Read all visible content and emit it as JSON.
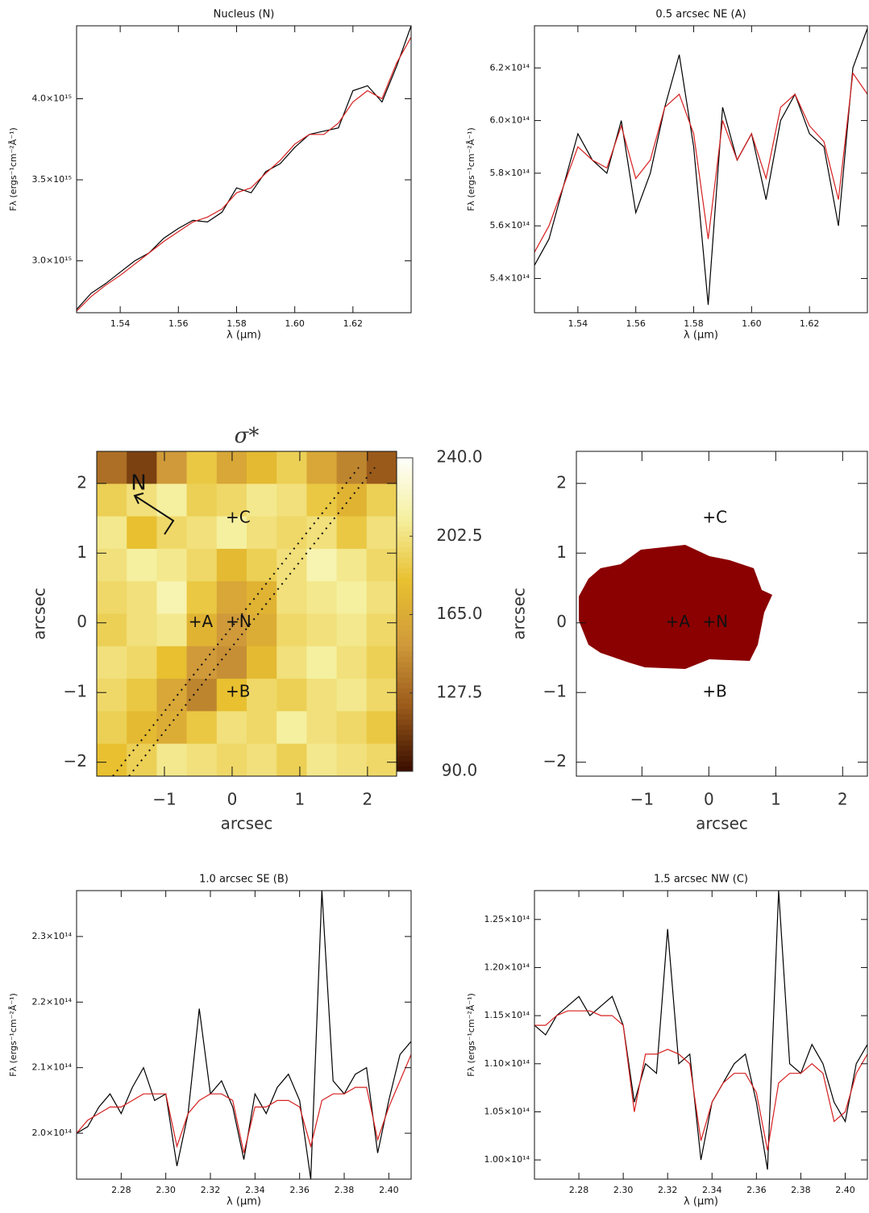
{
  "chart_data": [
    {
      "type": "line",
      "title": "Nucleus (N)",
      "xlabel": "λ (μm)",
      "ylabel": "Fλ (ergs⁻¹cm⁻²Å⁻¹)",
      "xlim": [
        1.525,
        1.64
      ],
      "ylim": [
        2680000000000000.0,
        4450000000000000.0
      ],
      "xticks": [
        1.54,
        1.56,
        1.58,
        {
          "value": 1.6,
          "label": "1.60"
        },
        1.62
      ],
      "yticks": [
        {
          "value": 3000000000000000.0,
          "label": "3.0×10¹⁵"
        },
        {
          "value": 3500000000000000.0,
          "label": "3.5×10¹⁵"
        },
        {
          "value": 4000000000000000.0,
          "label": "4.0×10¹⁵"
        }
      ],
      "x": [
        1.525,
        1.53,
        1.535,
        1.54,
        1.545,
        1.55,
        1.555,
        1.56,
        1.565,
        1.57,
        1.575,
        1.58,
        1.585,
        1.59,
        1.595,
        1.6,
        1.605,
        1.61,
        1.615,
        1.62,
        1.625,
        1.63,
        1.635,
        1.64
      ],
      "series": [
        {
          "color": "#000000",
          "values": [
            2700000000000000.0,
            2800000000000000.0,
            2860000000000000.0,
            2930000000000000.0,
            3000000000000000.0,
            3050000000000000.0,
            3140000000000000.0,
            3200000000000000.0,
            3250000000000000.0,
            3240000000000000.0,
            3300000000000000.0,
            3450000000000000.0,
            3420000000000000.0,
            3550000000000000.0,
            3600000000000000.0,
            3700000000000000.0,
            3780000000000000.0,
            3800000000000000.0,
            3820000000000000.0,
            4050000000000000.0,
            4080000000000000.0,
            3980000000000000.0,
            4200000000000000.0,
            4450000000000000.0
          ]
        },
        {
          "color": "#d62020",
          "values": [
            2690000000000000.0,
            2780000000000000.0,
            2850000000000000.0,
            2910000000000000.0,
            2980000000000000.0,
            3050000000000000.0,
            3120000000000000.0,
            3180000000000000.0,
            3240000000000000.0,
            3270000000000000.0,
            3320000000000000.0,
            3420000000000000.0,
            3450000000000000.0,
            3540000000000000.0,
            3620000000000000.0,
            3720000000000000.0,
            3780000000000000.0,
            3780000000000000.0,
            3850000000000000.0,
            3980000000000000.0,
            4050000000000000.0,
            4000000000000000.0,
            4220000000000000.0,
            4380000000000000.0
          ]
        }
      ]
    },
    {
      "type": "line",
      "title": "0.5 arcsec NE (A)",
      "xlabel": "λ (μm)",
      "ylabel": "Fλ (ergs⁻¹cm⁻²Å⁻¹)",
      "xlim": [
        1.525,
        1.64
      ],
      "ylim": [
        527000000000000.0,
        636000000000000.0
      ],
      "xticks": [
        1.54,
        1.56,
        1.58,
        {
          "value": 1.6,
          "label": "1.60"
        },
        1.62
      ],
      "yticks": [
        {
          "value": 540000000000000.0,
          "label": "5.4×10¹⁴"
        },
        {
          "value": 560000000000000.0,
          "label": "5.6×10¹⁴"
        },
        {
          "value": 580000000000000.0,
          "label": "5.8×10¹⁴"
        },
        {
          "value": 600000000000000.0,
          "label": "6.0×10¹⁴"
        },
        {
          "value": 620000000000000.0,
          "label": "6.2×10¹⁴"
        }
      ],
      "x": [
        1.525,
        1.53,
        1.535,
        1.54,
        1.545,
        1.55,
        1.555,
        1.56,
        1.565,
        1.57,
        1.575,
        1.58,
        1.585,
        1.59,
        1.595,
        1.6,
        1.605,
        1.61,
        1.615,
        1.62,
        1.625,
        1.63,
        1.635,
        1.64
      ],
      "series": [
        {
          "color": "#000000",
          "values": [
            545000000000000.0,
            555000000000000.0,
            575000000000000.0,
            595000000000000.0,
            585000000000000.0,
            580000000000000.0,
            600000000000000.0,
            565000000000000.0,
            580000000000000.0,
            605000000000000.0,
            625000000000000.0,
            590000000000000.0,
            530000000000000.0,
            605000000000000.0,
            585000000000000.0,
            595000000000000.0,
            570000000000000.0,
            600000000000000.0,
            610000000000000.0,
            595000000000000.0,
            590000000000000.0,
            560000000000000.0,
            620000000000000.0,
            635000000000000.0
          ]
        },
        {
          "color": "#d62020",
          "values": [
            550000000000000.0,
            560000000000000.0,
            575000000000000.0,
            590000000000000.0,
            585000000000000.0,
            582000000000000.0,
            598000000000000.0,
            578000000000000.0,
            585000000000000.0,
            605000000000000.0,
            610000000000000.0,
            595000000000000.0,
            555000000000000.0,
            600000000000000.0,
            585000000000000.0,
            595000000000000.0,
            578000000000000.0,
            605000000000000.0,
            610000000000000.0,
            598000000000000.0,
            592000000000000.0,
            570000000000000.0,
            618000000000000.0,
            610000000000000.0
          ]
        }
      ]
    },
    {
      "type": "heatmap",
      "title": "σ*",
      "xlabel": "arcsec",
      "ylabel": "arcsec",
      "north_label": "N",
      "xlim": [
        -2.0,
        2.43
      ],
      "ylim": [
        -2.2,
        2.46
      ],
      "xticks": [
        {
          "value": -1,
          "label": "−1"
        },
        0,
        1,
        2
      ],
      "yticks": [
        {
          "value": -2,
          "label": "−2"
        },
        {
          "value": -1,
          "label": "−1"
        },
        0,
        1,
        2
      ],
      "clim": [
        90,
        240
      ],
      "cticks": [
        {
          "value": 90,
          "label": "90.0"
        },
        127.5,
        {
          "value": 165,
          "label": "165.0"
        },
        202.5,
        {
          "value": 240,
          "label": "240.0"
        }
      ],
      "colormap": [
        "#3c1000",
        "#9a5a1a",
        "#d09a3a",
        "#e8c030",
        "#f5f0a0",
        "#ffffff"
      ],
      "z": [
        [
          130,
          110,
          150,
          185,
          160,
          175,
          190,
          160,
          140,
          120
        ],
        [
          190,
          200,
          210,
          190,
          195,
          205,
          200,
          185,
          170,
          190
        ],
        [
          205,
          180,
          195,
          200,
          210,
          200,
          195,
          200,
          185,
          200
        ],
        [
          200,
          210,
          205,
          195,
          175,
          190,
          200,
          215,
          205,
          195
        ],
        [
          195,
          200,
          215,
          185,
          160,
          170,
          200,
          205,
          210,
          200
        ],
        [
          190,
          200,
          205,
          170,
          150,
          165,
          195,
          200,
          205,
          195
        ],
        [
          200,
          195,
          180,
          150,
          145,
          175,
          200,
          210,
          200,
          190
        ],
        [
          195,
          185,
          160,
          140,
          180,
          195,
          190,
          200,
          205,
          195
        ],
        [
          190,
          175,
          165,
          185,
          200,
          195,
          210,
          200,
          195,
          185
        ],
        [
          180,
          190,
          205,
          200,
          195,
          200,
          190,
          205,
          200,
          195
        ]
      ],
      "points": [
        {
          "label": "+A",
          "x": -0.55,
          "y": 0
        },
        {
          "label": "+N",
          "x": 0,
          "y": 0
        },
        {
          "label": "+B",
          "x": 0,
          "y": -1
        },
        {
          "label": "+C",
          "x": 0,
          "y": 1.5
        }
      ]
    },
    {
      "type": "scatter",
      "xlabel": "arcsec",
      "ylabel": "arcsec",
      "xlim": [
        -1.98,
        2.37
      ],
      "ylim": [
        -2.2,
        2.46
      ],
      "xticks": [
        {
          "value": -1,
          "label": "−1"
        },
        0,
        1,
        2
      ],
      "yticks": [
        {
          "value": -2,
          "label": "−2"
        },
        {
          "value": -1,
          "label": "−1"
        },
        0,
        1,
        2
      ],
      "points": [
        {
          "label": "+A",
          "x": -0.55,
          "y": 0
        },
        {
          "label": "+N",
          "x": 0,
          "y": 0
        },
        {
          "label": "+B",
          "x": 0,
          "y": -1
        },
        {
          "label": "+C",
          "x": 0,
          "y": 1.5
        }
      ]
    },
    {
      "type": "line",
      "title": "1.0 arcsec SE (B)",
      "xlabel": "λ (μm)",
      "ylabel": "Fλ (ergs⁻¹cm⁻²Å⁻¹)",
      "xlim": [
        2.26,
        2.41
      ],
      "ylim": [
        193000000000000.0,
        237000000000000.0
      ],
      "xticks": [
        2.28,
        {
          "value": 2.3,
          "label": "2.30"
        },
        2.32,
        2.34,
        2.36,
        2.38,
        {
          "value": 2.4,
          "label": "2.40"
        }
      ],
      "yticks": [
        {
          "value": 200000000000000.0,
          "label": "2.0×10¹⁴"
        },
        {
          "value": 210000000000000.0,
          "label": "2.1×10¹⁴"
        },
        {
          "value": 220000000000000.0,
          "label": "2.2×10¹⁴"
        },
        {
          "value": 230000000000000.0,
          "label": "2.3×10¹⁴"
        }
      ],
      "x": [
        2.26,
        2.265,
        2.27,
        2.275,
        2.28,
        2.285,
        2.29,
        2.295,
        2.3,
        2.305,
        2.31,
        2.315,
        2.32,
        2.325,
        2.33,
        2.335,
        2.34,
        2.345,
        2.35,
        2.355,
        2.36,
        2.365,
        2.37,
        2.375,
        2.38,
        2.385,
        2.39,
        2.395,
        2.4,
        2.405,
        2.41
      ],
      "series": [
        {
          "color": "#000000",
          "values": [
            200000000000000.0,
            201000000000000.0,
            204000000000000.0,
            206000000000000.0,
            203000000000000.0,
            207000000000000.0,
            210000000000000.0,
            205000000000000.0,
            206000000000000.0,
            195000000000000.0,
            203000000000000.0,
            219000000000000.0,
            206000000000000.0,
            208000000000000.0,
            204000000000000.0,
            196000000000000.0,
            206000000000000.0,
            203000000000000.0,
            207000000000000.0,
            209000000000000.0,
            205000000000000.0,
            193000000000000.0,
            237000000000000.0,
            208000000000000.0,
            206000000000000.0,
            209000000000000.0,
            210000000000000.0,
            197000000000000.0,
            205000000000000.0,
            212000000000000.0,
            214000000000000.0
          ]
        },
        {
          "color": "#d62020",
          "values": [
            200000000000000.0,
            202000000000000.0,
            203000000000000.0,
            204000000000000.0,
            204000000000000.0,
            205000000000000.0,
            206000000000000.0,
            206000000000000.0,
            206000000000000.0,
            198000000000000.0,
            203000000000000.0,
            205000000000000.0,
            206000000000000.0,
            206000000000000.0,
            205000000000000.0,
            197000000000000.0,
            204000000000000.0,
            204000000000000.0,
            205000000000000.0,
            205000000000000.0,
            204000000000000.0,
            198000000000000.0,
            205000000000000.0,
            206000000000000.0,
            206000000000000.0,
            207000000000000.0,
            207000000000000.0,
            199000000000000.0,
            204000000000000.0,
            208000000000000.0,
            212000000000000.0
          ]
        }
      ]
    },
    {
      "type": "line",
      "title": "1.5 arcsec NW (C)",
      "xlabel": "λ (μm)",
      "ylabel": "Fλ (ergs⁻¹cm⁻²Å⁻¹)",
      "xlim": [
        2.26,
        2.41
      ],
      "ylim": [
        98000000000000.0,
        128000000000000.0
      ],
      "xticks": [
        2.28,
        {
          "value": 2.3,
          "label": "2.30"
        },
        2.32,
        2.34,
        2.36,
        2.38,
        {
          "value": 2.4,
          "label": "2.40"
        }
      ],
      "yticks": [
        {
          "value": 100000000000000.0,
          "label": "1.00×10¹⁴"
        },
        {
          "value": 105000000000000.0,
          "label": "1.05×10¹⁴"
        },
        {
          "value": 110000000000000.0,
          "label": "1.10×10¹⁴"
        },
        {
          "value": 115000000000000.0,
          "label": "1.15×10¹⁴"
        },
        {
          "value": 120000000000000.0,
          "label": "1.20×10¹⁴"
        },
        {
          "value": 125000000000000.0,
          "label": "1.25×10¹⁴"
        }
      ],
      "x": [
        2.26,
        2.265,
        2.27,
        2.275,
        2.28,
        2.285,
        2.29,
        2.295,
        2.3,
        2.305,
        2.31,
        2.315,
        2.32,
        2.325,
        2.33,
        2.335,
        2.34,
        2.345,
        2.35,
        2.355,
        2.36,
        2.365,
        2.37,
        2.375,
        2.38,
        2.385,
        2.39,
        2.395,
        2.4,
        2.405,
        2.41
      ],
      "series": [
        {
          "color": "#000000",
          "values": [
            114000000000000.0,
            113000000000000.0,
            115000000000000.0,
            116000000000000.0,
            117000000000000.0,
            115000000000000.0,
            116000000000000.0,
            117000000000000.0,
            114000000000000.0,
            106000000000000.0,
            110000000000000.0,
            109000000000000.0,
            124000000000000.0,
            110000000000000.0,
            111000000000000.0,
            100000000000000.0,
            106000000000000.0,
            108000000000000.0,
            110000000000000.0,
            111000000000000.0,
            106000000000000.0,
            99000000000000.0,
            128000000000000.0,
            110000000000000.0,
            109000000000000.0,
            112000000000000.0,
            110000000000000.0,
            106000000000000.0,
            104000000000000.0,
            110000000000000.0,
            112000000000000.0
          ]
        },
        {
          "color": "#d62020",
          "values": [
            114000000000000.0,
            114000000000000.0,
            115000000000000.0,
            115500000000000.0,
            115500000000000.0,
            115500000000000.0,
            115000000000000.0,
            115000000000000.0,
            114000000000000.0,
            105000000000000.0,
            111000000000000.0,
            111000000000000.0,
            111500000000000.0,
            111000000000000.0,
            110000000000000.0,
            102000000000000.0,
            106000000000000.0,
            108000000000000.0,
            109000000000000.0,
            109000000000000.0,
            107000000000000.0,
            101000000000000.0,
            108000000000000.0,
            109000000000000.0,
            109000000000000.0,
            110000000000000.0,
            109000000000000.0,
            104000000000000.0,
            105000000000000.0,
            109000000000000.0,
            111000000000000.0
          ]
        }
      ]
    }
  ]
}
